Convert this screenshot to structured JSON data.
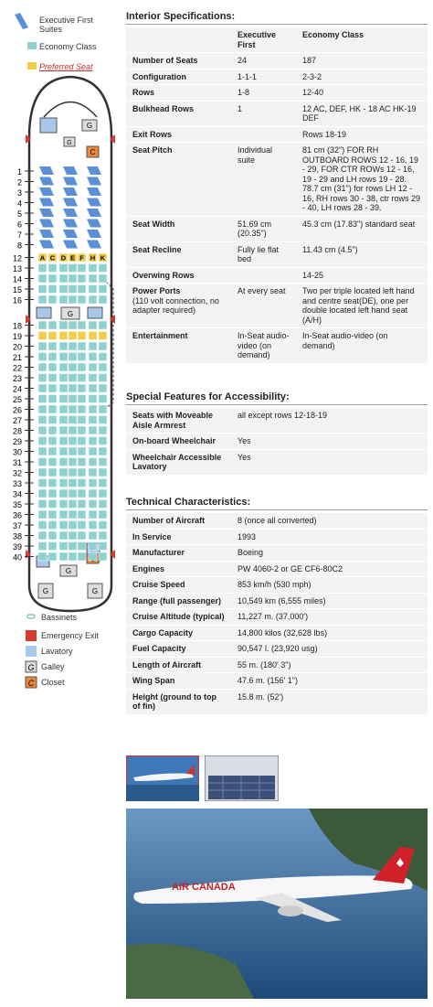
{
  "legend_top": [
    {
      "label": "Executive First Suites"
    },
    {
      "label": "Economy Class"
    },
    {
      "label": "Preferred Seat"
    }
  ],
  "seat_map": {
    "rows": [
      1,
      2,
      3,
      4,
      5,
      6,
      7,
      8,
      12,
      13,
      14,
      15,
      16,
      18,
      19,
      20,
      21,
      22,
      23,
      24,
      25,
      26,
      27,
      28,
      29,
      30,
      31,
      32,
      33,
      34,
      35,
      36,
      37,
      38,
      39,
      40
    ],
    "seat_letters": [
      "A",
      "C",
      "D",
      "E",
      "F",
      "H",
      "K"
    ],
    "preferred_row": 19
  },
  "legend_bottom": [
    {
      "label": "Bassinets"
    },
    {
      "label": "Emergency Exit"
    },
    {
      "label": "Lavatory"
    },
    {
      "label": "Galley",
      "icon": "G"
    },
    {
      "label": "Closet",
      "icon": "C"
    }
  ],
  "interior": {
    "title": "Interior Specifications:",
    "columns": [
      "Executive First",
      "Economy Class"
    ],
    "rows": [
      {
        "label": "Number of Seats",
        "first": "24",
        "economy": "187"
      },
      {
        "label": "Configuration",
        "first": "1-1-1",
        "economy": "2-3-2"
      },
      {
        "label": "Rows",
        "first": "1-8",
        "economy": "12-40"
      },
      {
        "label": "Bulkhead Rows",
        "first": "1",
        "economy": "12 AC, DEF, HK - 18 AC HK-19 DEF"
      },
      {
        "label": "Exit Rows",
        "economy": "Rows 18-19"
      },
      {
        "label": "Seat Pitch",
        "first": "Individual suite",
        "economy": "81 cm (32\") FOR RH OUTBOARD ROWS 12 - 16, 19 - 29, FOR CTR ROWs 12 - 16, 19 - 29 and LH rows 19 - 28. 78.7 cm (31\") for rows LH 12 - 16, RH rows 30 - 38, ctr rows 29 - 40, LH rows 28 - 39."
      },
      {
        "label": "Seat Width",
        "first": "51.69 cm (20.35\")",
        "economy": "45.3 cm (17.83\") standard seat"
      },
      {
        "label": "Seat Recline",
        "first": "Fully lie flat bed",
        "economy": "11.43 cm (4.5\")"
      },
      {
        "label": "Overwing Rows",
        "economy": "14-25"
      },
      {
        "label": "Power Ports",
        "note": "(110 volt connection, no adapter required)",
        "first": "At every seat",
        "economy": "Two per triple located left hand and centre seat(DE), one per double located left hand seat (A/H)"
      },
      {
        "label": "Entertainment",
        "first": "In-Seat audio-video (on demand)",
        "economy": "In-Seat audio-video (on demand)"
      }
    ]
  },
  "accessibility": {
    "title": "Special Features for Accessibility:",
    "rows": [
      {
        "label": "Seats with Moveable Aisle Armrest",
        "value": "all except rows 12-18-19"
      },
      {
        "label": "On-board Wheelchair",
        "value": "Yes"
      },
      {
        "label": "Wheelchair Accessible Lavatory",
        "value": "Yes"
      }
    ]
  },
  "technical": {
    "title": "Technical Characteristics:",
    "rows": [
      {
        "label": "Number of Aircraft",
        "value": "8 (once all converted)"
      },
      {
        "label": "In Service",
        "value": "1993"
      },
      {
        "label": "Manufacturer",
        "value": "Boeing"
      },
      {
        "label": "Engines",
        "value": "PW 4060-2 or GE CF6-80C2"
      },
      {
        "label": "Cruise Speed",
        "value": "853 km/h (530 mph)"
      },
      {
        "label": "Range (full passenger)",
        "value": "10,549 km (6,555 miles)"
      },
      {
        "label": "Cruise Altitude (typical)",
        "value": "11,227 m. (37,000')"
      },
      {
        "label": "Cargo Capacity",
        "value": "14,800 kilos (32,628 lbs)"
      },
      {
        "label": "Fuel Capacity",
        "value": "90,547 l. (23,920 usg)"
      },
      {
        "label": "Length of Aircraft",
        "value": "55 m. (180' 3\")"
      },
      {
        "label": "Wing Span",
        "value": "47.6 m. (156' 1\")"
      },
      {
        "label": "Height (ground to top of fin)",
        "value": "15.8 m. (52')"
      }
    ]
  },
  "photo_text": "AIR CANADA"
}
